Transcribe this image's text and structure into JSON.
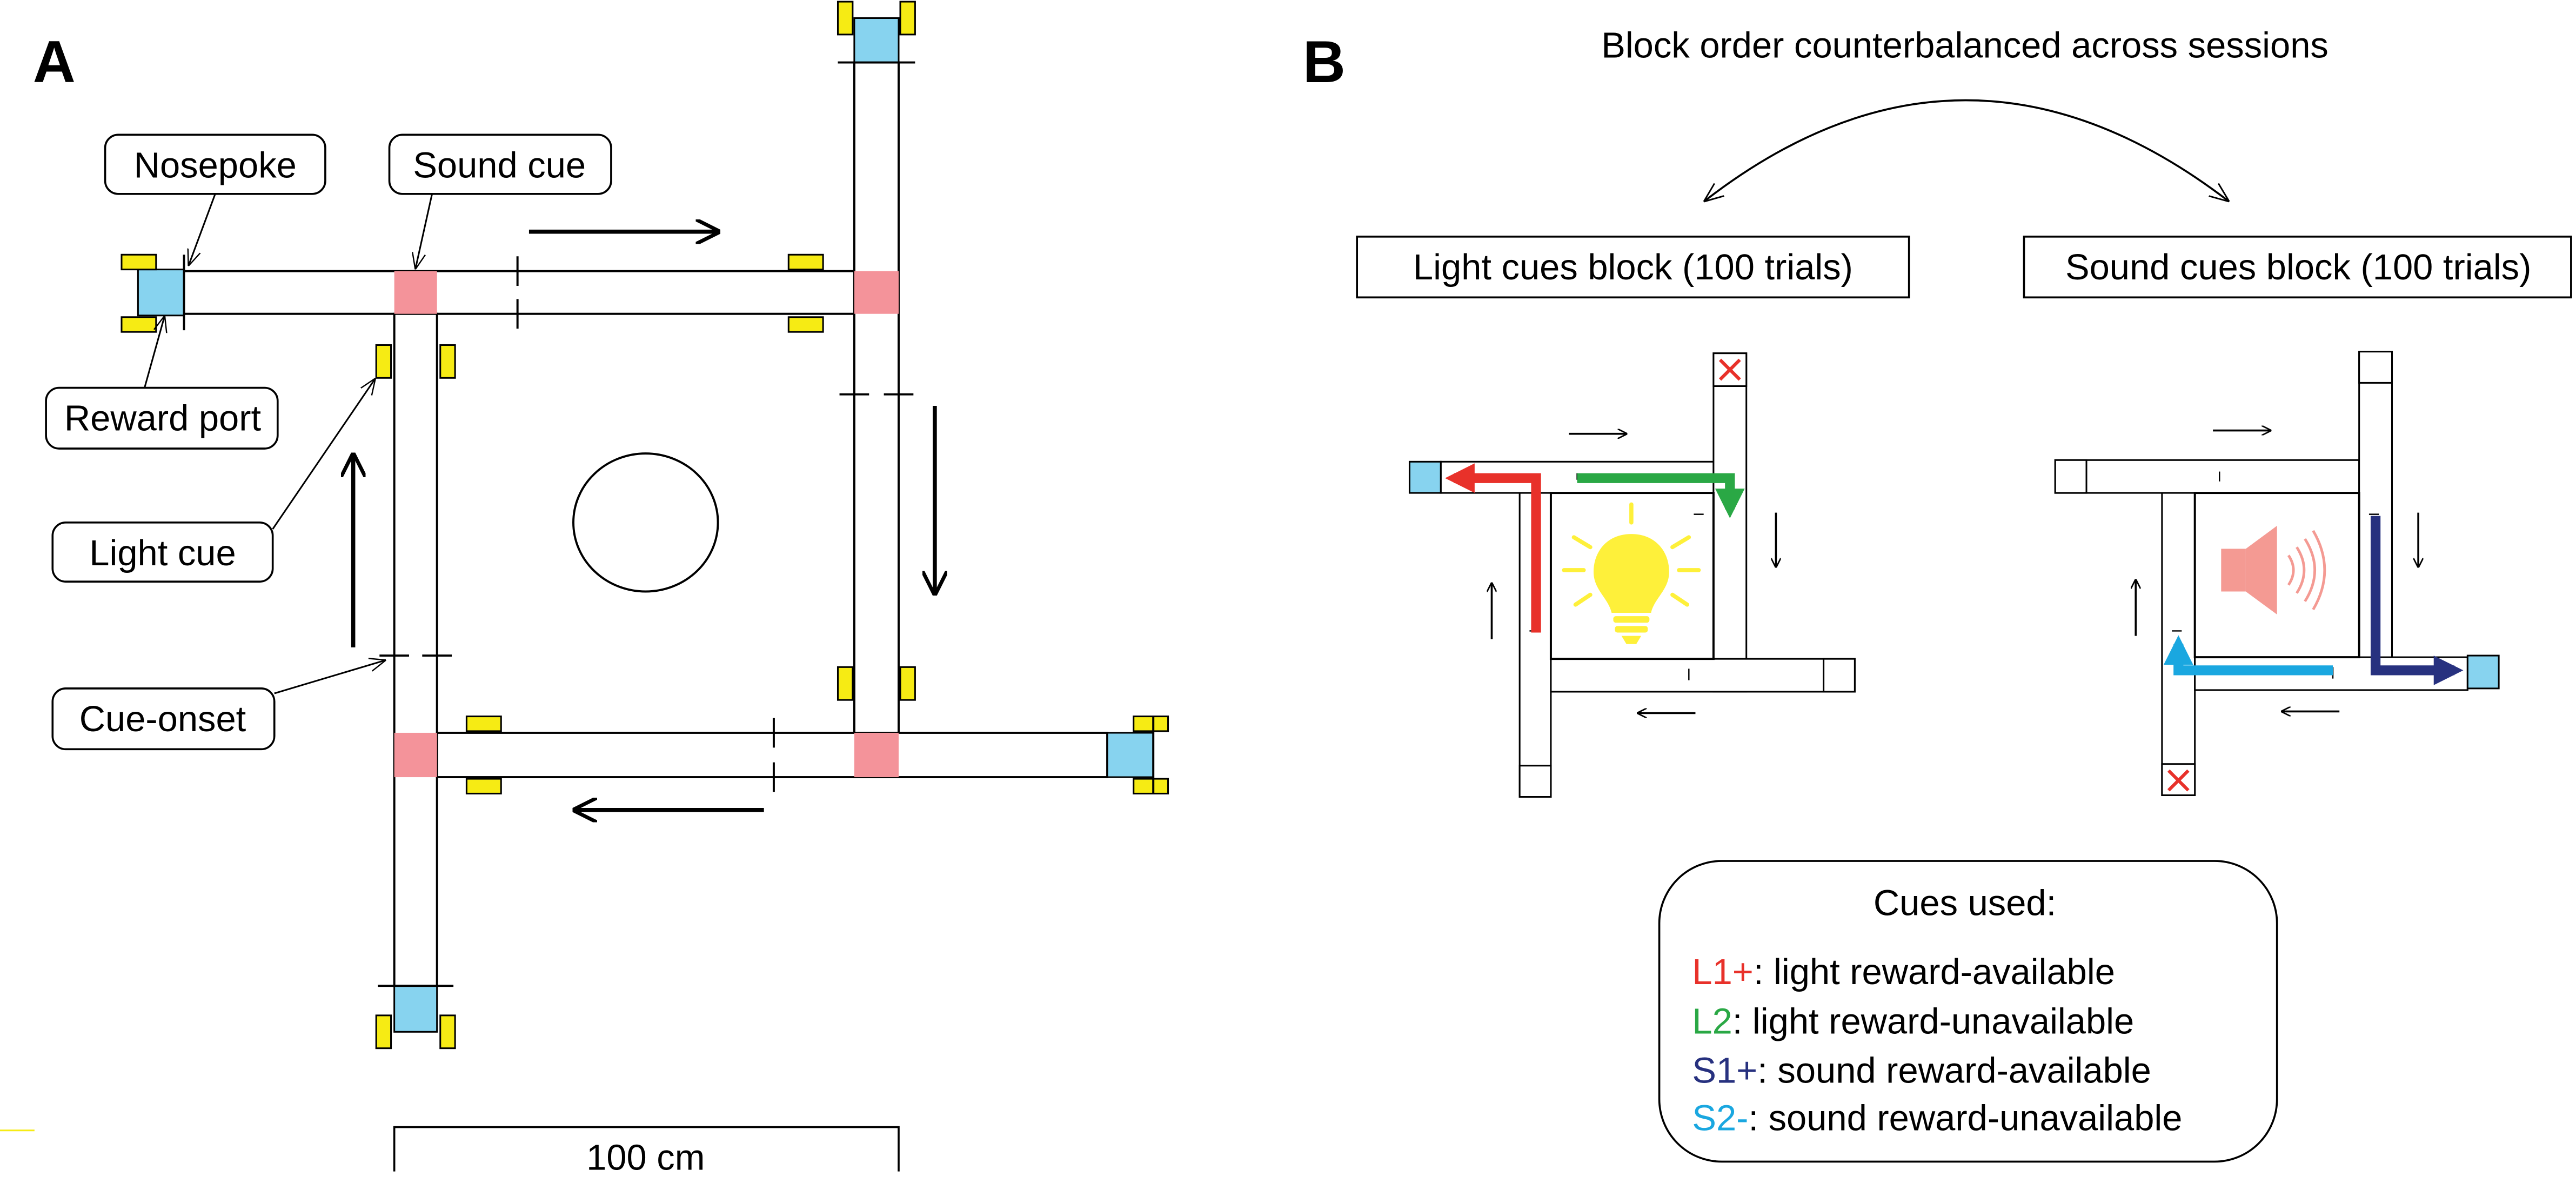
{
  "panel_a": {
    "letter": "A",
    "labels": {
      "nosepoke": "Nosepoke",
      "sound_cue": "Sound cue",
      "reward_port": "Reward port",
      "light_cue": "Light cue",
      "cue_onset": "Cue-onset"
    },
    "scale_bar": "100 cm"
  },
  "panel_b": {
    "letter": "B",
    "header": "Block order counterbalanced across sessions",
    "light_block": "Light cues block (100 trials)",
    "sound_block": "Sound cues block (100 trials)",
    "legend": {
      "title": "Cues used:",
      "items": [
        {
          "code": "L1+",
          "text": ": light reward-available",
          "color": "#e8312a"
        },
        {
          "code": "L2",
          "text": ": light reward-unavailable",
          "color": "#2aa845"
        },
        {
          "code": "S1+",
          "text": ": sound reward-available",
          "color": "#27317f"
        },
        {
          "code": "S2-",
          "text": ": sound reward-unavailable",
          "color": "#1aa7e0"
        }
      ]
    }
  },
  "colors": {
    "nosepoke": "#87d3ef",
    "light_cue": "#f6eb14",
    "sound_cue": "#f4939a",
    "bulb": "#fef03a",
    "speaker": "#f49a93",
    "red_x": "#e8312a"
  }
}
